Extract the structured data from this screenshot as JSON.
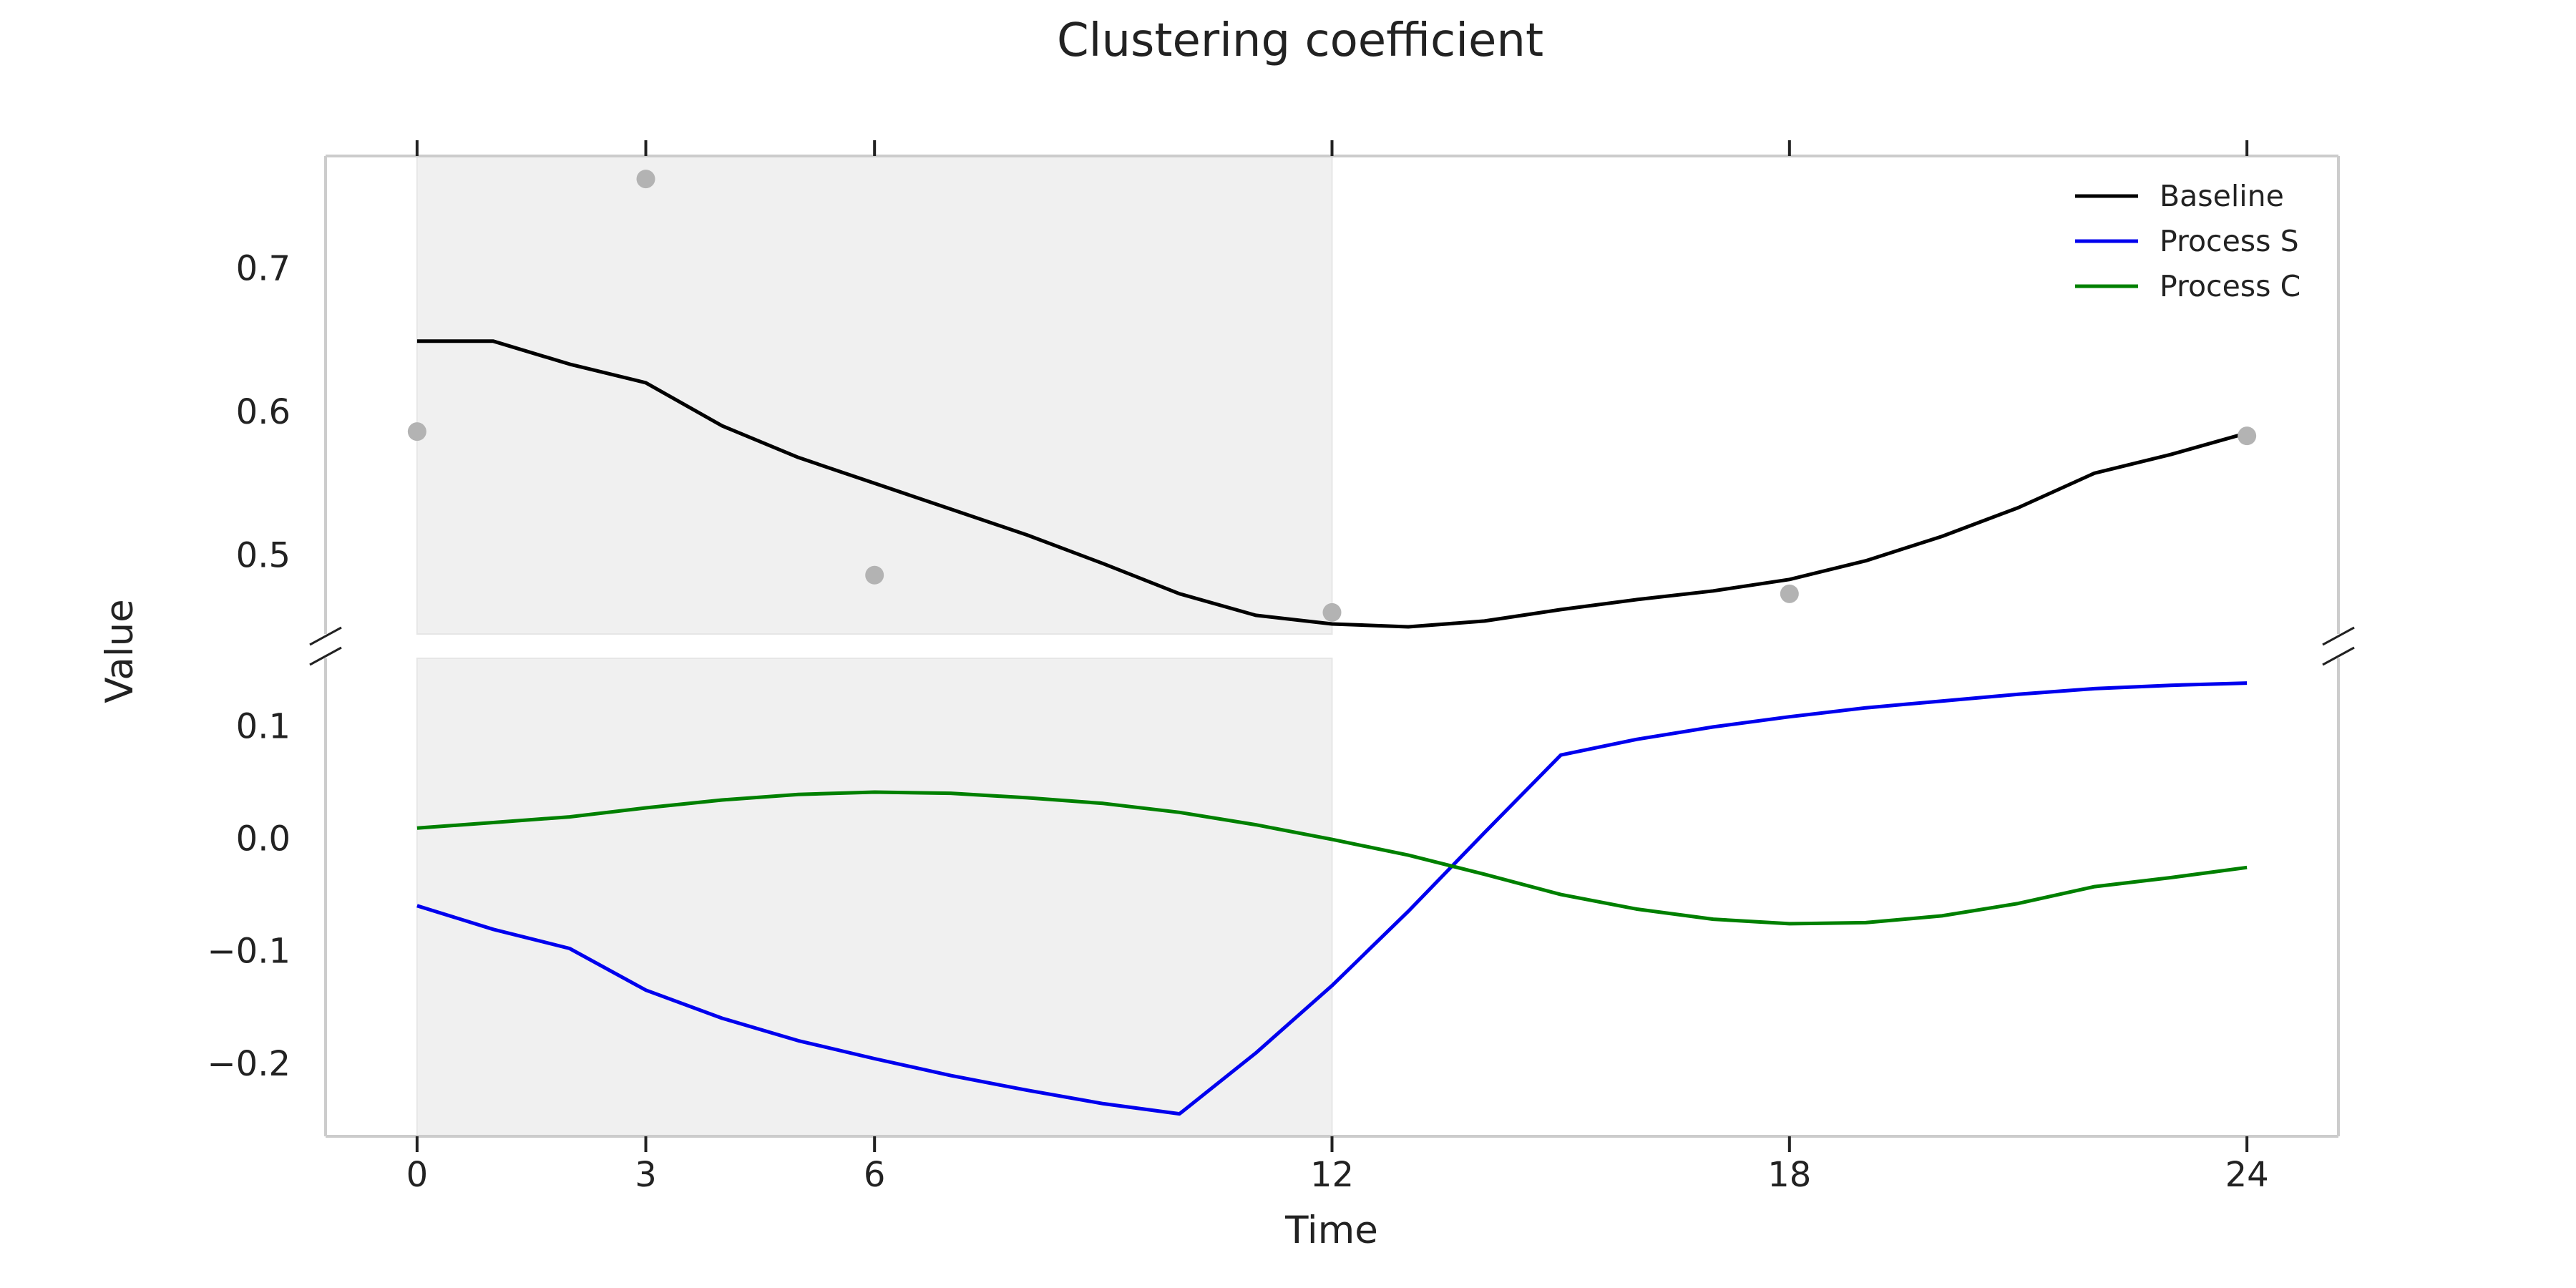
{
  "chart_data": {
    "type": "line",
    "title": "Clustering coefficient",
    "xlabel": "Time",
    "ylabel": "Value",
    "xlim": [
      -1.2,
      25.2
    ],
    "x_ticks": [
      0,
      3,
      6,
      12,
      18,
      24
    ],
    "highlight_region": [
      0,
      12
    ],
    "legend_position": "top-right",
    "broken_y_axis": true,
    "grid": false,
    "top_panel": {
      "ylim": [
        0.445,
        0.778
      ],
      "y_ticks": [
        0.5,
        0.6,
        0.7
      ],
      "series": [
        {
          "name": "Baseline",
          "color": "#000000",
          "x": [
            0,
            1,
            2,
            3,
            4,
            5,
            6,
            7,
            8,
            9,
            10,
            11,
            12,
            13,
            14,
            15,
            16,
            17,
            18,
            19,
            20,
            21,
            22,
            23,
            24
          ],
          "values": [
            0.649,
            0.649,
            0.633,
            0.62,
            0.59,
            0.568,
            0.55,
            0.532,
            0.514,
            0.494,
            0.473,
            0.458,
            0.452,
            0.45,
            0.454,
            0.462,
            0.469,
            0.475,
            0.483,
            0.496,
            0.513,
            0.533,
            0.557,
            0.57,
            0.585
          ]
        }
      ],
      "markers": {
        "color": "#b3b3b3",
        "x": [
          0,
          3,
          6,
          12,
          18,
          24
        ],
        "values": [
          0.586,
          0.762,
          0.486,
          0.46,
          0.473,
          0.583
        ]
      }
    },
    "bottom_panel": {
      "ylim": [
        -0.265,
        0.16
      ],
      "y_ticks": [
        -0.2,
        -0.1,
        0.0,
        0.1
      ],
      "y_tick_labels": [
        "−0.2",
        "−0.1",
        "0.0",
        "0.1"
      ],
      "series": [
        {
          "name": "Process S",
          "color": "#0000ee",
          "x": [
            0,
            1,
            2,
            3,
            4,
            5,
            6,
            7,
            8,
            9,
            10,
            11,
            12,
            13,
            14,
            15,
            16,
            17,
            18,
            19,
            20,
            21,
            22,
            23,
            24
          ],
          "values": [
            -0.06,
            -0.081,
            -0.098,
            -0.135,
            -0.16,
            -0.18,
            -0.196,
            -0.211,
            -0.224,
            -0.236,
            -0.245,
            -0.191,
            -0.131,
            -0.065,
            0.005,
            0.074,
            0.088,
            0.099,
            0.108,
            0.116,
            0.122,
            0.128,
            0.133,
            0.136,
            0.138
          ]
        },
        {
          "name": "Process C",
          "color": "#008000",
          "x": [
            0,
            1,
            2,
            3,
            4,
            5,
            6,
            7,
            8,
            9,
            10,
            11,
            12,
            13,
            14,
            15,
            16,
            17,
            18,
            19,
            20,
            21,
            22,
            23,
            24
          ],
          "values": [
            0.009,
            0.014,
            0.019,
            0.027,
            0.034,
            0.039,
            0.041,
            0.04,
            0.036,
            0.031,
            0.023,
            0.012,
            -0.001,
            -0.015,
            -0.032,
            -0.05,
            -0.063,
            -0.072,
            -0.076,
            -0.075,
            -0.069,
            -0.058,
            -0.043,
            -0.035,
            -0.026
          ]
        }
      ]
    }
  }
}
